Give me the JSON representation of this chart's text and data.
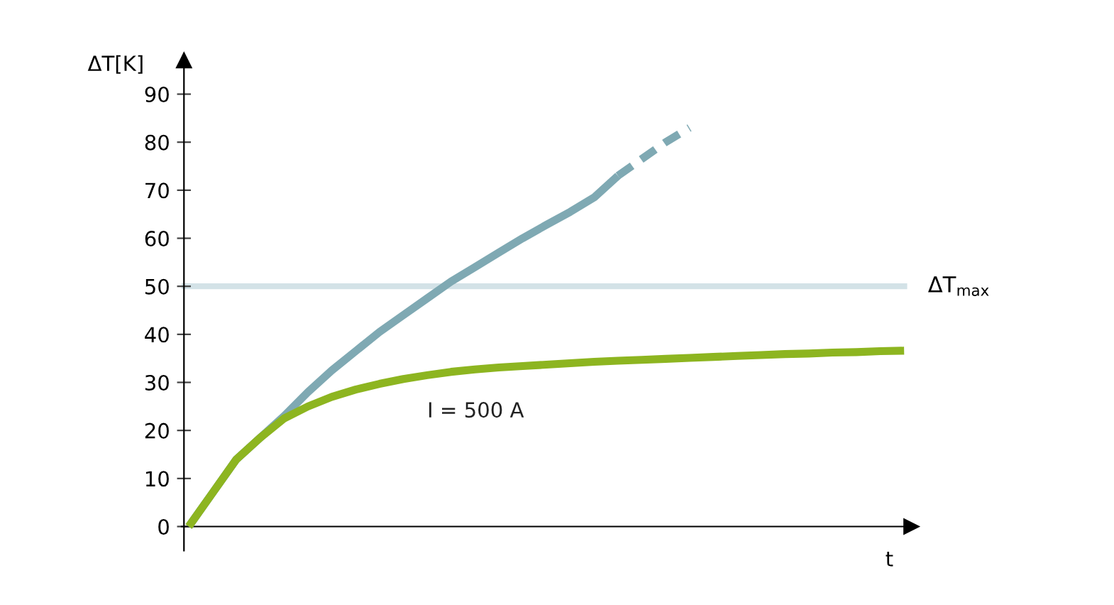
{
  "chart_data": {
    "type": "line",
    "xlabel": "t",
    "ylabel": "ΔT[K]",
    "categories": [
      null,
      null,
      null,
      null,
      null,
      null,
      null,
      null,
      null,
      null,
      null,
      null,
      null,
      null,
      null,
      null,
      null,
      null,
      null,
      null,
      null,
      null,
      null,
      null,
      null,
      null,
      null,
      null,
      null,
      null,
      null
    ],
    "series": [
      {
        "color": "#7fa9b3",
        "line_style": "solid",
        "values": [
          0,
          7,
          14,
          18.5,
          23,
          28,
          32.5,
          36.5,
          40.5,
          44,
          47.5,
          51,
          54,
          57,
          60,
          62.8,
          65.5,
          68.5,
          73,
          null,
          null,
          null,
          null,
          null,
          null,
          null,
          null,
          null,
          null,
          null,
          null
        ]
      },
      {
        "color": "#7fa9b3",
        "line_style": "dashed",
        "values": [
          null,
          null,
          null,
          null,
          null,
          null,
          null,
          null,
          null,
          null,
          null,
          null,
          null,
          null,
          null,
          null,
          null,
          null,
          73,
          76.5,
          80,
          83,
          null,
          null,
          null,
          null,
          null,
          null,
          null,
          null,
          null
        ]
      },
      {
        "name": "I = 500 A",
        "color": "#8db520",
        "line_style": "solid",
        "values": [
          0,
          7,
          14,
          18.5,
          22.5,
          25,
          27,
          28.5,
          29.7,
          30.7,
          31.5,
          32.2,
          32.7,
          33.1,
          33.4,
          33.7,
          34,
          34.3,
          34.5,
          34.7,
          34.9,
          35.1,
          35.3,
          35.5,
          35.7,
          35.9,
          36,
          36.2,
          36.3,
          36.5,
          36.6
        ]
      }
    ],
    "ylim": [
      -5,
      97
    ],
    "yticks": [
      0,
      10,
      20,
      30,
      40,
      50,
      60,
      70,
      80,
      90
    ],
    "ref_lines": [
      {
        "axis": "y",
        "value": 50,
        "label": "ΔT$_{max}$",
        "color": "#d3e2e7"
      }
    ],
    "grid": false,
    "legend": false,
    "marker": "none",
    "tick_labels": "y"
  }
}
